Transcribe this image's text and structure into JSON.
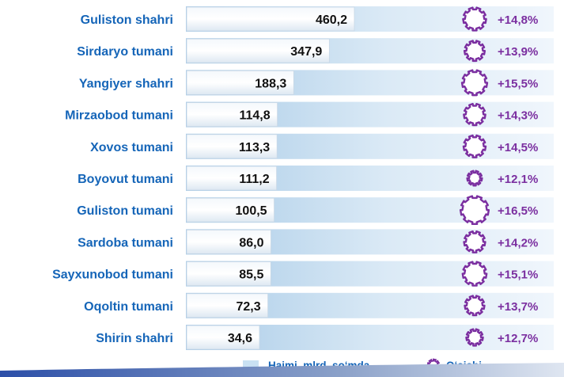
{
  "chart_data": {
    "type": "bar",
    "orientation": "horizontal",
    "categories": [
      "Guliston shahri",
      "Sirdaryo tumani",
      "Yangiyer shahri",
      "Mirzaobod tumani",
      "Xovos tumani",
      "Boyovut tumani",
      "Guliston tumani",
      "Sardoba tumani",
      "Sayxunobod tumani",
      "Oqoltin tumani",
      "Shirin shahri"
    ],
    "series": [
      {
        "name": "Hajmi, mlrd. so‘mda",
        "values": [
          460.2,
          347.9,
          188.3,
          114.8,
          113.3,
          111.2,
          100.5,
          86.0,
          85.5,
          72.3,
          34.6
        ],
        "labels": [
          "460,2",
          "347,9",
          "188,3",
          "114,8",
          "113,3",
          "111,2",
          "100,5",
          "86,0",
          "85,5",
          "72,3",
          "34,6"
        ]
      },
      {
        "name": "O‘sishi",
        "values": [
          14.8,
          13.9,
          15.5,
          14.3,
          14.5,
          12.1,
          16.5,
          14.2,
          15.1,
          13.7,
          12.7
        ],
        "labels": [
          "+14,8%",
          "+13,9%",
          "+15,5%",
          "+14,3%",
          "+14,5%",
          "+12,1%",
          "+16,5%",
          "+14,2%",
          "+15,1%",
          "+13,7%",
          "+12,7%"
        ]
      }
    ],
    "legend_position": "bottom",
    "colors": {
      "label": "#1565b8",
      "growth": "#7b2fa0",
      "bar_light": "#dcecf7",
      "bar_dark": "#a9cbe7"
    }
  }
}
